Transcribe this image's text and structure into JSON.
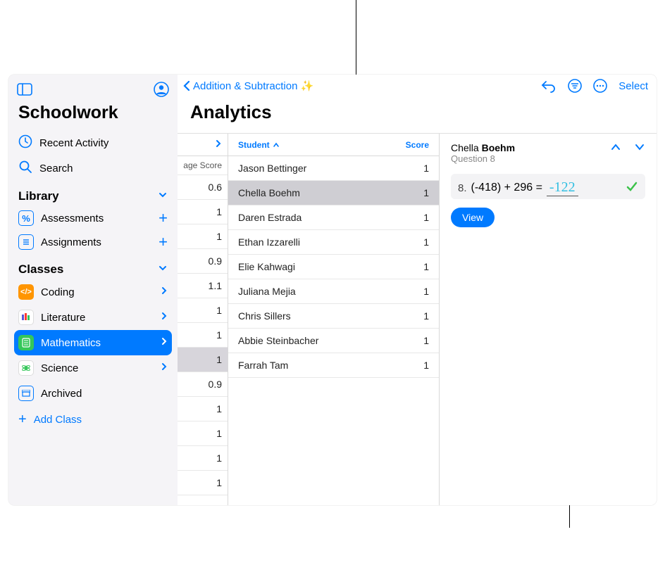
{
  "colors": {
    "accent": "#007aff",
    "sidebar_bg": "#f5f4f7",
    "selected_row": "#cfced3",
    "col1_highlight": "#d7d5db",
    "answer_bg": "#f3f3f5",
    "handwriting": "#33bfe2",
    "check": "#3cc24a"
  },
  "sidebar": {
    "app_title": "Schoolwork",
    "nav": {
      "recent": "Recent Activity",
      "search": "Search"
    },
    "library": {
      "header": "Library",
      "assessments": "Assessments",
      "assignments": "Assignments"
    },
    "classes_header": "Classes",
    "classes": {
      "coding": "Coding",
      "literature": "Literature",
      "mathematics": "Mathematics",
      "science": "Science",
      "archived": "Archived"
    },
    "add_class": "Add Class"
  },
  "topbar": {
    "back_label": "Addition & Subtraction ✨",
    "select": "Select"
  },
  "page_title": "Analytics",
  "col1": {
    "header": "age Score",
    "values": [
      "0.6",
      "1",
      "1",
      "0.9",
      "1.1",
      "1",
      "1",
      "1",
      "0.9",
      "1",
      "1",
      "1",
      "1"
    ],
    "highlight_index": 7
  },
  "students": {
    "col_student": "Student",
    "col_score": "Score",
    "rows": [
      {
        "name": "Jason Bettinger",
        "score": "1"
      },
      {
        "name": "Chella Boehm",
        "score": "1"
      },
      {
        "name": "Daren Estrada",
        "score": "1"
      },
      {
        "name": "Ethan Izzarelli",
        "score": "1"
      },
      {
        "name": "Elie Kahwagi",
        "score": "1"
      },
      {
        "name": "Juliana Mejia",
        "score": "1"
      },
      {
        "name": "Chris Sillers",
        "score": "1"
      },
      {
        "name": "Abbie Steinbacher",
        "score": "1"
      },
      {
        "name": "Farrah Tam",
        "score": "1"
      }
    ],
    "selected_index": 1
  },
  "detail": {
    "name_first": "Chella",
    "name_last": "Boehm",
    "question": "Question 8",
    "qnum": "8.",
    "equation": "(-418) + 296 =",
    "answer": "-122",
    "view": "View"
  }
}
